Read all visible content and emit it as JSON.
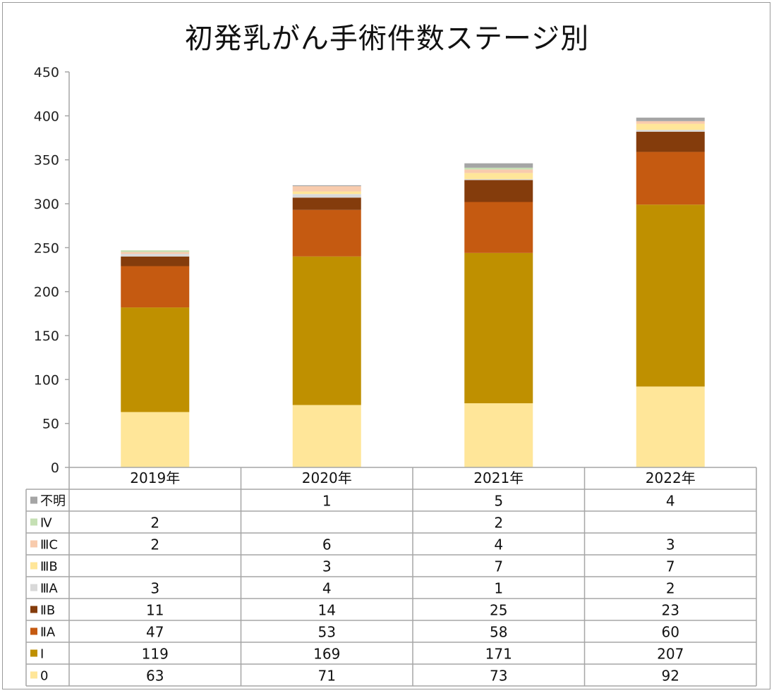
{
  "chart_data": {
    "type": "bar",
    "stacked": true,
    "title": "初発乳がん手術件数ステージ別",
    "categories": [
      "2019年",
      "2020年",
      "2021年",
      "2022年"
    ],
    "ylim": [
      0,
      450
    ],
    "yticks": [
      0,
      50,
      100,
      150,
      200,
      250,
      300,
      350,
      400,
      450
    ],
    "grid": false,
    "legend": "data-table-left",
    "series": [
      {
        "name": "0",
        "color": "#FFE699",
        "values": [
          63,
          71,
          73,
          92
        ],
        "labels": [
          "63",
          "71",
          "73",
          "92"
        ]
      },
      {
        "name": "Ⅰ",
        "color": "#BF9000",
        "values": [
          119,
          169,
          171,
          207
        ],
        "labels": [
          "119",
          "169",
          "171",
          "207"
        ]
      },
      {
        "name": "ⅡA",
        "color": "#C55A11",
        "values": [
          47,
          53,
          58,
          60
        ],
        "labels": [
          "47",
          "53",
          "58",
          "60"
        ]
      },
      {
        "name": "ⅡB",
        "color": "#843C0C",
        "values": [
          11,
          14,
          25,
          23
        ],
        "labels": [
          "11",
          "14",
          "25",
          "23"
        ]
      },
      {
        "name": "ⅢA",
        "color": "#D9D9D9",
        "values": [
          3,
          4,
          1,
          2
        ],
        "labels": [
          "3",
          "4",
          "1",
          "2"
        ]
      },
      {
        "name": "ⅢB",
        "color": "#FFE699",
        "values": [
          0,
          3,
          7,
          7
        ],
        "labels": [
          "",
          "3",
          "7",
          "7"
        ]
      },
      {
        "name": "ⅢC",
        "color": "#F8CBAD",
        "values": [
          2,
          6,
          4,
          3
        ],
        "labels": [
          "2",
          "6",
          "4",
          "3"
        ]
      },
      {
        "name": "Ⅳ",
        "color": "#C5E0B4",
        "values": [
          2,
          0,
          2,
          0
        ],
        "labels": [
          "2",
          "",
          "2",
          ""
        ]
      },
      {
        "name": "不明",
        "color": "#A5A5A5",
        "values": [
          0,
          1,
          5,
          4
        ],
        "labels": [
          "",
          "1",
          "5",
          "4"
        ]
      }
    ]
  }
}
